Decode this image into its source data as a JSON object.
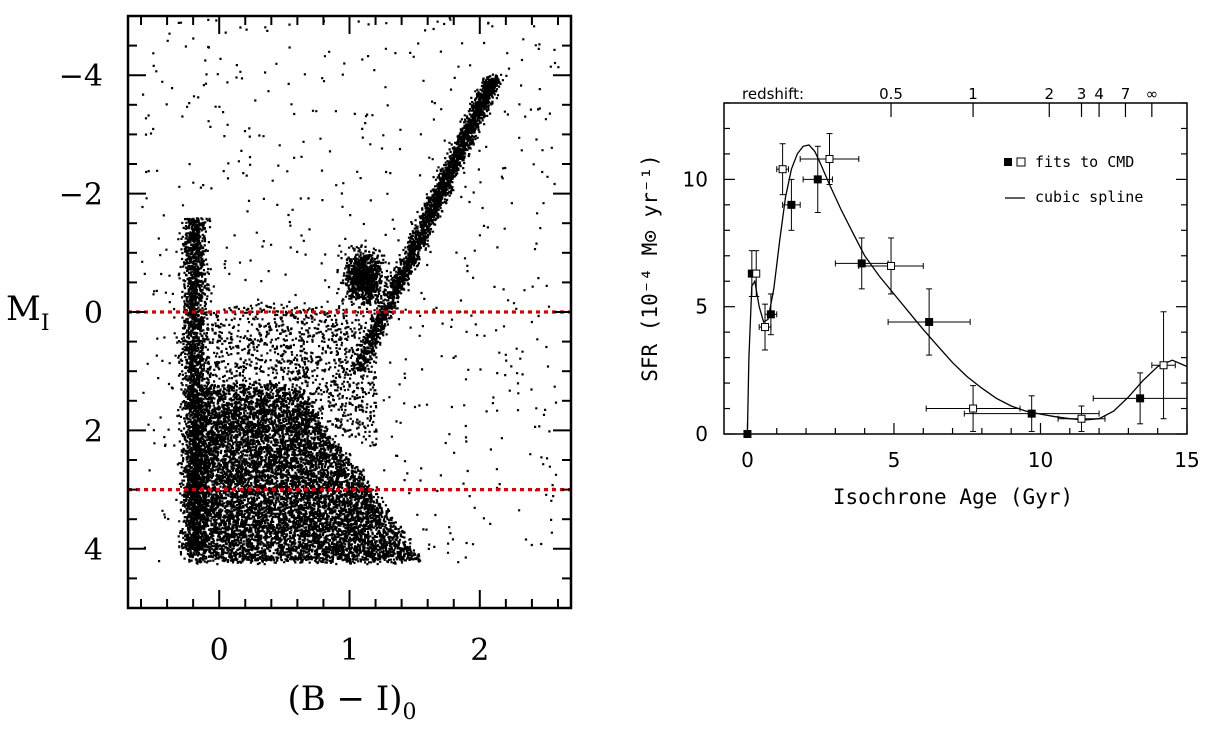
{
  "chart_data": [
    {
      "type": "scatter",
      "xlabel_main": "(B − I)",
      "xlabel_sub": "0",
      "ylabel_main": "M",
      "ylabel_sub": "I",
      "xlim": [
        -0.7,
        2.7
      ],
      "ylim": [
        5,
        -5
      ],
      "y_inverted": true,
      "x_ticks": [
        0,
        1,
        2
      ],
      "x_tick_labels": [
        "0",
        "1",
        "2"
      ],
      "y_ticks": [
        -4,
        -2,
        0,
        2,
        4
      ],
      "y_tick_labels": [
        "−4",
        "−2",
        "0",
        "2",
        "4"
      ],
      "grid": false,
      "reference_lines": [
        {
          "y": 0,
          "color": "#dd0000",
          "style": "dotted"
        },
        {
          "y": 3,
          "color": "#dd0000",
          "style": "dotted"
        }
      ],
      "point_color": "#000000",
      "density_features": [
        {
          "feature": "main_sequence_turnoff",
          "x_range": [
            -0.2,
            1.5
          ],
          "y_range": [
            1.2,
            4.2
          ]
        },
        {
          "feature": "blue_plume",
          "x_range": [
            -0.35,
            0.05
          ],
          "y_range": [
            -1.5,
            4.0
          ]
        },
        {
          "feature": "red_giant_branch",
          "x_range": [
            1.0,
            2.2
          ],
          "y_range": [
            -4.0,
            1.0
          ]
        },
        {
          "feature": "red_clump",
          "x_range": [
            0.9,
            1.3
          ],
          "y_range": [
            -1.2,
            0.2
          ]
        }
      ]
    },
    {
      "type": "line",
      "xlabel": "Isochrone Age (Gyr)",
      "ylabel": "SFR (10⁻⁴ M⊙ yr⁻¹)",
      "xlim": [
        -0.8,
        15
      ],
      "ylim": [
        0,
        13
      ],
      "x_ticks": [
        0,
        5,
        10,
        15
      ],
      "x_tick_labels": [
        "0",
        "5",
        "10",
        "15"
      ],
      "y_ticks": [
        0,
        5,
        10
      ],
      "y_tick_labels": [
        "0",
        "5",
        "10"
      ],
      "grid": false,
      "top_axis": {
        "label": "redshift:",
        "ticks": [
          {
            "label": "0.5",
            "age": 4.9
          },
          {
            "label": "1",
            "age": 7.7
          },
          {
            "label": "2",
            "age": 10.3
          },
          {
            "label": "3",
            "age": 11.4
          },
          {
            "label": "4",
            "age": 12.0
          },
          {
            "label": "7",
            "age": 12.9
          },
          {
            "label": "∞",
            "age": 13.8
          }
        ]
      },
      "legend_position": "top-right",
      "legend": [
        {
          "marker": "filled-square",
          "marker2": "open-square",
          "label": "fits to CMD"
        },
        {
          "marker": "line",
          "label": "cubic spline"
        }
      ],
      "series": [
        {
          "name": "fits to CMD",
          "marker": "filled-square",
          "points": [
            {
              "x": 0.0,
              "y": 0.0,
              "xerr": 0.0,
              "yerr": 0.0
            },
            {
              "x": 0.15,
              "y": 6.3,
              "xerr": 0.1,
              "yerr": 0.9
            },
            {
              "x": 0.8,
              "y": 4.7,
              "xerr": 0.2,
              "yerr": 0.8
            },
            {
              "x": 1.5,
              "y": 9.0,
              "xerr": 0.3,
              "yerr": 1.0
            },
            {
              "x": 2.4,
              "y": 10.0,
              "xerr": 0.5,
              "yerr": 1.3
            },
            {
              "x": 3.9,
              "y": 6.7,
              "xerr": 0.9,
              "yerr": 1.0
            },
            {
              "x": 6.2,
              "y": 4.4,
              "xerr": 1.4,
              "yerr": 1.3
            },
            {
              "x": 9.7,
              "y": 0.8,
              "xerr": 2.3,
              "yerr": 0.7
            },
            {
              "x": 13.4,
              "y": 1.4,
              "xerr": 1.6,
              "yerr": 1.0
            }
          ]
        },
        {
          "name": "fits to CMD",
          "marker": "open-square",
          "points": [
            {
              "x": 0.3,
              "y": 6.3,
              "xerr": 0.1,
              "yerr": 0.9
            },
            {
              "x": 0.6,
              "y": 4.2,
              "xerr": 0.2,
              "yerr": 0.9
            },
            {
              "x": 1.2,
              "y": 10.4,
              "xerr": 0.2,
              "yerr": 1.0
            },
            {
              "x": 2.8,
              "y": 10.8,
              "xerr": 1.0,
              "yerr": 1.0
            },
            {
              "x": 4.9,
              "y": 6.6,
              "xerr": 1.1,
              "yerr": 1.1
            },
            {
              "x": 7.7,
              "y": 1.0,
              "xerr": 1.6,
              "yerr": 0.9
            },
            {
              "x": 11.4,
              "y": 0.6,
              "xerr": 0.8,
              "yerr": 0.5
            },
            {
              "x": 14.2,
              "y": 2.7,
              "xerr": 0.4,
              "yerr": 2.1
            }
          ]
        },
        {
          "name": "cubic spline",
          "style": "line",
          "x": [
            0,
            0.05,
            0.15,
            0.25,
            0.4,
            0.55,
            0.7,
            0.9,
            1.1,
            1.3,
            1.5,
            1.7,
            1.9,
            2.1,
            2.3,
            2.5,
            2.8,
            3.2,
            3.6,
            4.0,
            4.5,
            5.0,
            5.5,
            6.0,
            6.5,
            7.0,
            7.5,
            8.0,
            8.5,
            9.0,
            9.5,
            10.0,
            10.5,
            11.0,
            11.5,
            12.0,
            12.5,
            13.0,
            13.5,
            14.0,
            14.5,
            15.0
          ],
          "y": [
            0,
            3.0,
            5.8,
            6.0,
            5.0,
            4.4,
            4.5,
            5.7,
            7.6,
            9.3,
            10.4,
            11.0,
            11.3,
            11.35,
            11.1,
            10.6,
            9.8,
            8.8,
            7.9,
            7.0,
            6.2,
            5.5,
            4.8,
            4.1,
            3.45,
            2.8,
            2.25,
            1.8,
            1.4,
            1.1,
            0.9,
            0.78,
            0.68,
            0.6,
            0.55,
            0.6,
            0.9,
            1.45,
            2.1,
            2.65,
            2.9,
            2.65
          ]
        }
      ]
    }
  ]
}
